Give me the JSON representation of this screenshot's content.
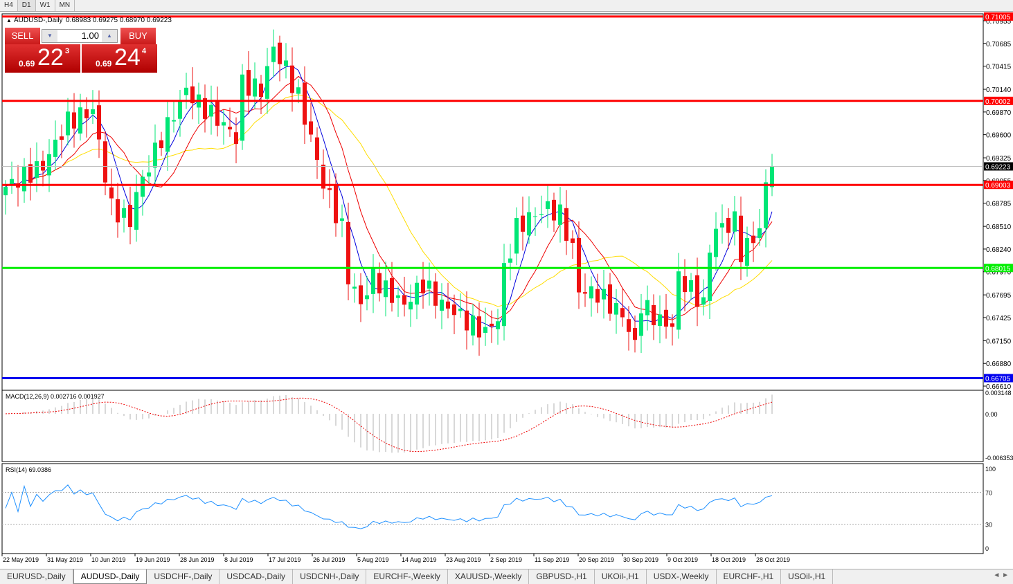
{
  "timeframes": [
    {
      "label": "H4"
    },
    {
      "label": "D1",
      "active": true
    },
    {
      "label": "W1"
    },
    {
      "label": "MN"
    }
  ],
  "header": {
    "symbol": "AUDUSD-,Daily",
    "ohlc": "0.68983 0.69275 0.68970 0.69223"
  },
  "trade_panel": {
    "sell_label": "SELL",
    "buy_label": "BUY",
    "lot": "1.00",
    "sell": {
      "prefix": "0.69",
      "big": "22",
      "sup": "3"
    },
    "buy": {
      "prefix": "0.69",
      "big": "24",
      "sup": "4"
    }
  },
  "indicators": {
    "macd_label": "MACD(12,26,9) 0.002716 0.001927",
    "rsi_label": "RSI(14) 69.0386"
  },
  "price_axis": [
    "0.70955",
    "0.70685",
    "0.70415",
    "0.70140",
    "0.69870",
    "0.69600",
    "0.69325",
    "0.69055",
    "0.68785",
    "0.68510",
    "0.68240",
    "0.67970",
    "0.67695",
    "0.67425",
    "0.67150",
    "0.66880",
    "0.66610"
  ],
  "macd_axis": [
    "0.003148",
    "0.00",
    "-0.006353"
  ],
  "rsi_axis": [
    "100",
    "70",
    "30",
    "0"
  ],
  "date_axis": [
    "22 May 2019",
    "31 May 2019",
    "10 Jun 2019",
    "19 Jun 2019",
    "28 Jun 2019",
    "8 Jul 2019",
    "17 Jul 2019",
    "26 Jul 2019",
    "5 Aug 2019",
    "14 Aug 2019",
    "23 Aug 2019",
    "2 Sep 2019",
    "11 Sep 2019",
    "20 Sep 2019",
    "30 Sep 2019",
    "9 Oct 2019",
    "18 Oct 2019",
    "28 Oct 2019"
  ],
  "levels": [
    {
      "price": "0.71005",
      "color": "#ff0000"
    },
    {
      "price": "0.70002",
      "color": "#ff0000"
    },
    {
      "price": "0.69003",
      "color": "#ff0000"
    },
    {
      "price": "0.68015",
      "color": "#00ee00"
    },
    {
      "price": "0.66705",
      "color": "#0000ee"
    }
  ],
  "current_price": "0.69223",
  "colors": {
    "bull": "#00e676",
    "bear": "#ee1111",
    "ma_fast": "#0000dd",
    "ma_mid": "#ee0000",
    "ma_slow": "#ffdd00",
    "rsi": "#1e90ff"
  },
  "chart_data": {
    "type": "candlestick",
    "symbol": "AUDUSD",
    "timeframe": "Daily",
    "ylim": [
      0.6661,
      0.71005
    ],
    "close_keypoints": [
      [
        0,
        0.6898
      ],
      [
        6,
        0.6923
      ],
      [
        10,
        0.6976
      ],
      [
        14,
        0.6989
      ],
      [
        17,
        0.6873
      ],
      [
        20,
        0.6857
      ],
      [
        21,
        0.689
      ],
      [
        25,
        0.6956
      ],
      [
        29,
        0.7013
      ],
      [
        31,
        0.6997
      ],
      [
        35,
        0.6972
      ],
      [
        37,
        0.6956
      ],
      [
        38,
        0.7021
      ],
      [
        41,
        0.7013
      ],
      [
        43,
        0.7063
      ],
      [
        45,
        0.7038
      ],
      [
        47,
        0.7005
      ],
      [
        49,
        0.6956
      ],
      [
        51,
        0.6902
      ],
      [
        54,
        0.6849
      ],
      [
        55,
        0.6791
      ],
      [
        57,
        0.6758
      ],
      [
        59,
        0.6791
      ],
      [
        61,
        0.6775
      ],
      [
        64,
        0.6758
      ],
      [
        67,
        0.6783
      ],
      [
        70,
        0.6758
      ],
      [
        72,
        0.675
      ],
      [
        75,
        0.6733
      ],
      [
        77,
        0.6725
      ],
      [
        79,
        0.6742
      ],
      [
        80,
        0.6799
      ],
      [
        82,
        0.6849
      ],
      [
        84,
        0.6861
      ],
      [
        87,
        0.6873
      ],
      [
        89,
        0.6865
      ],
      [
        91,
        0.6824
      ],
      [
        92,
        0.6775
      ],
      [
        95,
        0.6771
      ],
      [
        97,
        0.6758
      ],
      [
        99,
        0.6746
      ],
      [
        101,
        0.6709
      ],
      [
        102,
        0.6758
      ],
      [
        105,
        0.6738
      ],
      [
        107,
        0.6733
      ],
      [
        108,
        0.6791
      ],
      [
        110,
        0.6775
      ],
      [
        112,
        0.6758
      ],
      [
        113,
        0.6824
      ],
      [
        114,
        0.6849
      ],
      [
        115,
        0.6849
      ],
      [
        117,
        0.6857
      ],
      [
        118,
        0.682
      ],
      [
        120,
        0.6836
      ],
      [
        121,
        0.6849
      ],
      [
        122,
        0.6898
      ],
      [
        123,
        0.69223
      ]
    ]
  },
  "tabs": [
    {
      "label": "EURUSD-,Daily"
    },
    {
      "label": "AUDUSD-,Daily",
      "active": true
    },
    {
      "label": "USDCHF-,Daily"
    },
    {
      "label": "USDCAD-,Daily"
    },
    {
      "label": "USDCNH-,Daily"
    },
    {
      "label": "EURCHF-,Weekly"
    },
    {
      "label": "XAUUSD-,Weekly"
    },
    {
      "label": "GBPUSD-,H1"
    },
    {
      "label": "UKOil-,H1"
    },
    {
      "label": "USDX-,Weekly"
    },
    {
      "label": "EURCHF-,H1"
    },
    {
      "label": "USOil-,H1"
    }
  ]
}
